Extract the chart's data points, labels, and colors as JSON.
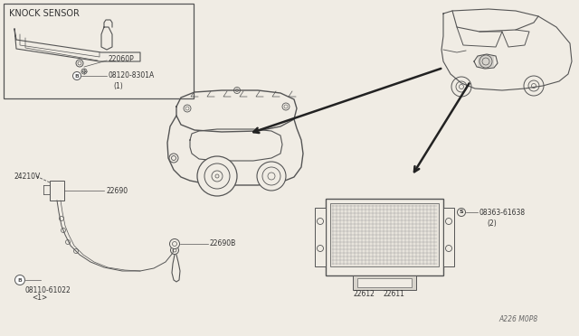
{
  "background_color": "#f0ece4",
  "line_color": "#555555",
  "text_color": "#333333",
  "diagram_code": "A226 M0P8",
  "parts": {
    "knock_sensor_label": "KNOCK SENSOR",
    "part_22060P": "22060P",
    "part_B_08120": "B",
    "part_08120_text": "08120-8301A",
    "qty_08120": "(1)",
    "part_24210V": "24210V",
    "part_22690": "22690",
    "part_22690B": "22690B",
    "part_B_08110": "B",
    "part_08110_text": "08110-61022",
    "qty_08110": "<1>",
    "part_22611": "22611",
    "part_22612": "22612",
    "part_S_08363": "S",
    "part_08363_text": "08363-61638",
    "qty_08363": "(2)"
  },
  "font_size_title": 7.0,
  "font_size_label": 6.5,
  "font_size_small": 5.5
}
